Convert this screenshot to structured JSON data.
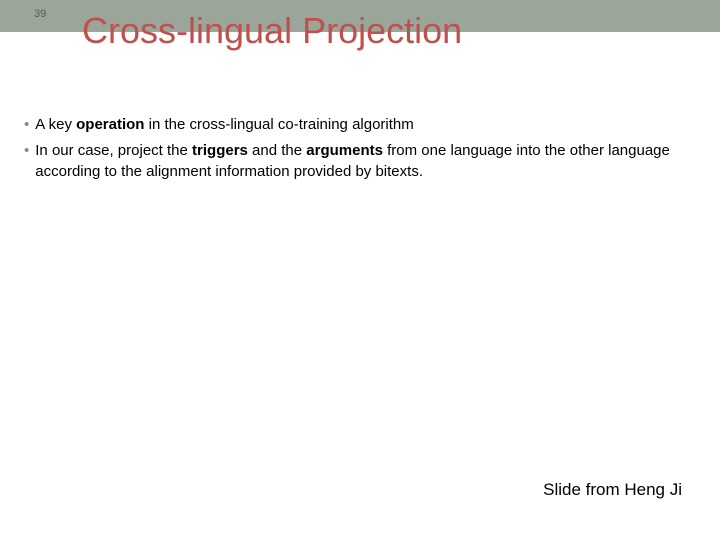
{
  "slide": {
    "number": "39",
    "title": "Cross-lingual Projection",
    "header_bg_color": "#9aa69a",
    "title_color": "#c0504d",
    "title_fontsize": 36,
    "body_fontsize": 15,
    "bullet_color": "#888888",
    "text_color": "#000000",
    "background_color": "#ffffff"
  },
  "bullets": [
    {
      "pre1": "A key ",
      "bold1": "operation",
      "post1": " in the cross-lingual co-training algorithm"
    },
    {
      "pre1": "In our case, project the ",
      "bold1": "triggers",
      "mid1": " and the ",
      "bold2": "arguments",
      "post1": " from one language into the other language according to the alignment information provided by bitexts."
    }
  ],
  "attribution": "Slide from Heng Ji"
}
